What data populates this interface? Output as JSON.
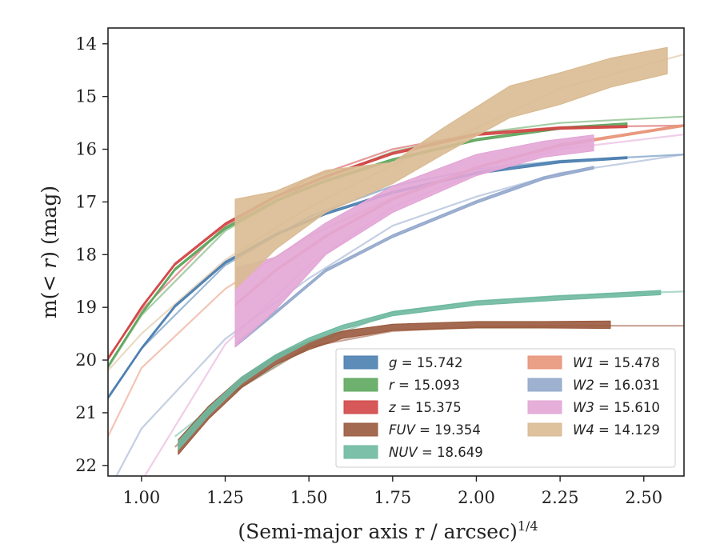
{
  "chart_data": {
    "type": "line",
    "xlabel": "(Semi-major axis r / arcsec)",
    "xlabel_superscript": "1/4",
    "ylabel_prefix": "m(",
    "ylabel_math": "< r",
    "ylabel_suffix": ") (mag)",
    "xlim": [
      0.9,
      2.62
    ],
    "ylim": [
      22.2,
      13.7
    ],
    "y_inverted": true,
    "xticks": [
      1.0,
      1.25,
      1.5,
      1.75,
      2.0,
      2.25,
      2.5
    ],
    "xtick_labels": [
      "1.00",
      "1.25",
      "1.50",
      "1.75",
      "2.00",
      "2.25",
      "2.50"
    ],
    "yticks": [
      14,
      15,
      16,
      17,
      18,
      19,
      20,
      21,
      22
    ],
    "ytick_labels": [
      "14",
      "15",
      "16",
      "17",
      "18",
      "19",
      "20",
      "21",
      "22"
    ],
    "grid": false,
    "legend_position": "lower-right",
    "series": [
      {
        "key": "g",
        "band": "g",
        "value": "15.742",
        "color": "#4c7fb0",
        "model_x": [
          0.9,
          1.0,
          1.25,
          1.5,
          1.75,
          2.0,
          2.25,
          2.62
        ],
        "model_y": [
          20.7,
          19.78,
          18.2,
          17.28,
          16.7,
          16.38,
          16.22,
          16.1
        ],
        "band_x": [
          0.9,
          1.0,
          1.1,
          1.25,
          1.4,
          1.55,
          1.75,
          2.0,
          2.25,
          2.45
        ],
        "band_y": [
          20.72,
          19.78,
          18.98,
          18.15,
          17.62,
          17.22,
          16.82,
          16.45,
          16.24,
          16.16
        ],
        "band_w": [
          0.04,
          0.04,
          0.04,
          0.04,
          0.04,
          0.04,
          0.04,
          0.04,
          0.04,
          0.04
        ]
      },
      {
        "key": "r",
        "band": "r",
        "value": "15.093",
        "color": "#5ea75e",
        "model_x": [
          0.9,
          1.0,
          1.25,
          1.5,
          1.75,
          2.0,
          2.25,
          2.62
        ],
        "model_y": [
          20.15,
          19.15,
          17.55,
          16.65,
          16.05,
          15.7,
          15.5,
          15.38
        ],
        "band_x": [
          0.9,
          1.0,
          1.1,
          1.25,
          1.4,
          1.55,
          1.75,
          2.0,
          2.25,
          2.45
        ],
        "band_y": [
          20.12,
          19.12,
          18.28,
          17.5,
          16.98,
          16.6,
          16.2,
          15.82,
          15.6,
          15.52
        ],
        "band_w": [
          0.04,
          0.04,
          0.04,
          0.04,
          0.04,
          0.04,
          0.04,
          0.04,
          0.04,
          0.04
        ]
      },
      {
        "key": "z",
        "band": "z",
        "value": "15.375",
        "color": "#d24646",
        "model_x": [
          0.9,
          1.0,
          1.25,
          1.5,
          1.75,
          2.0,
          2.25,
          2.62
        ],
        "model_y": [
          19.95,
          19.05,
          17.45,
          16.55,
          16.0,
          15.7,
          15.58,
          15.55
        ],
        "band_x": [
          0.9,
          1.0,
          1.1,
          1.25,
          1.4,
          1.55,
          1.75,
          2.0,
          2.25,
          2.45
        ],
        "band_y": [
          19.98,
          19.0,
          18.18,
          17.42,
          16.9,
          16.52,
          16.08,
          15.72,
          15.6,
          15.57
        ],
        "band_w": [
          0.04,
          0.04,
          0.04,
          0.04,
          0.04,
          0.04,
          0.04,
          0.04,
          0.04,
          0.04
        ]
      },
      {
        "key": "FUV",
        "band": "FUV",
        "value": "19.354",
        "color": "#9a5a3e",
        "model_x": [
          1.1,
          1.25,
          1.5,
          1.75,
          2.0,
          2.25,
          2.62
        ],
        "model_y": [
          21.65,
          20.7,
          19.75,
          19.45,
          19.37,
          19.35,
          19.35
        ],
        "band_x": [
          1.11,
          1.2,
          1.3,
          1.4,
          1.5,
          1.6,
          1.75,
          2.0,
          2.2,
          2.4
        ],
        "band_y": [
          21.65,
          21.0,
          20.42,
          20.0,
          19.72,
          19.52,
          19.38,
          19.33,
          19.33,
          19.33
        ],
        "band_w": [
          0.28,
          0.24,
          0.2,
          0.18,
          0.16,
          0.14,
          0.12,
          0.12,
          0.12,
          0.14
        ]
      },
      {
        "key": "NUV",
        "band": "NUV",
        "value": "18.649",
        "color": "#6fb9a0",
        "model_x": [
          1.1,
          1.25,
          1.5,
          1.75,
          2.0,
          2.25,
          2.62
        ],
        "model_y": [
          21.45,
          20.7,
          19.72,
          19.1,
          18.88,
          18.78,
          18.7
        ],
        "band_x": [
          1.11,
          1.2,
          1.3,
          1.4,
          1.5,
          1.6,
          1.75,
          2.0,
          2.25,
          2.55
        ],
        "band_y": [
          21.62,
          20.98,
          20.38,
          19.95,
          19.62,
          19.38,
          19.12,
          18.92,
          18.82,
          18.72
        ],
        "band_w": [
          0.16,
          0.14,
          0.12,
          0.1,
          0.08,
          0.08,
          0.08,
          0.08,
          0.08,
          0.08
        ]
      },
      {
        "key": "W1",
        "band": "W1",
        "value": "15.478",
        "color": "#e8957a",
        "model_x": [
          0.9,
          1.0,
          1.25,
          1.5,
          1.75,
          2.0,
          2.25,
          2.62
        ],
        "model_y": [
          21.45,
          20.15,
          18.65,
          17.65,
          16.92,
          16.35,
          15.95,
          15.55
        ],
        "band_x": [
          1.28,
          1.4,
          1.55,
          1.75,
          2.0,
          2.25,
          2.62
        ],
        "band_y": [
          18.95,
          18.3,
          17.65,
          16.95,
          16.35,
          15.92,
          15.55
        ],
        "band_w": [
          0.04,
          0.04,
          0.04,
          0.04,
          0.04,
          0.04,
          0.04
        ]
      },
      {
        "key": "W2",
        "band": "W2",
        "value": "16.031",
        "color": "#94a8cc",
        "model_x": [
          0.9,
          1.0,
          1.25,
          1.5,
          1.75,
          2.0,
          2.25,
          2.62
        ],
        "model_y": [
          22.5,
          21.3,
          19.6,
          18.45,
          17.45,
          16.9,
          16.45,
          16.1
        ],
        "band_x": [
          1.28,
          1.4,
          1.55,
          1.75,
          2.0,
          2.2,
          2.35
        ],
        "band_y": [
          19.72,
          19.1,
          18.3,
          17.65,
          17.0,
          16.55,
          16.35
        ],
        "band_w": [
          0.06,
          0.05,
          0.05,
          0.05,
          0.05,
          0.05,
          0.05
        ]
      },
      {
        "key": "W3",
        "band": "W3",
        "value": "15.610",
        "color": "#e3a6d6",
        "model_x": [
          0.9,
          1.0,
          1.25,
          1.5,
          1.75,
          2.0,
          2.25,
          2.62
        ],
        "model_y": [
          23.2,
          22.3,
          19.7,
          18.2,
          17.1,
          16.45,
          16.0,
          15.72
        ],
        "band_x": [
          1.28,
          1.4,
          1.55,
          1.75,
          2.0,
          2.2,
          2.35
        ],
        "band_y": [
          19.0,
          18.55,
          17.7,
          16.95,
          16.3,
          16.0,
          15.88
        ],
        "band_w": [
          1.5,
          1.0,
          0.6,
          0.5,
          0.4,
          0.3,
          0.3
        ]
      },
      {
        "key": "W4",
        "band": "W4",
        "value": "14.129",
        "color": "#d9bb92",
        "model_x": [
          0.9,
          1.0,
          1.25,
          1.5,
          1.75,
          2.0,
          2.25,
          2.62
        ],
        "model_y": [
          20.2,
          19.5,
          18.1,
          17.1,
          16.3,
          15.6,
          14.85,
          14.2
        ],
        "band_x": [
          1.28,
          1.4,
          1.55,
          1.75,
          1.9,
          2.1,
          2.25,
          2.4,
          2.57
        ],
        "band_y": [
          17.8,
          17.35,
          16.8,
          16.45,
          15.85,
          15.1,
          14.85,
          14.55,
          14.32
        ],
        "band_w": [
          1.7,
          1.1,
          0.8,
          0.4,
          0.5,
          0.6,
          0.6,
          0.55,
          0.5
        ]
      }
    ],
    "legend": {
      "columns": [
        [
          "g",
          "r",
          "z",
          "FUV",
          "NUV"
        ],
        [
          "W1",
          "W2",
          "W3",
          "W4"
        ]
      ]
    }
  }
}
